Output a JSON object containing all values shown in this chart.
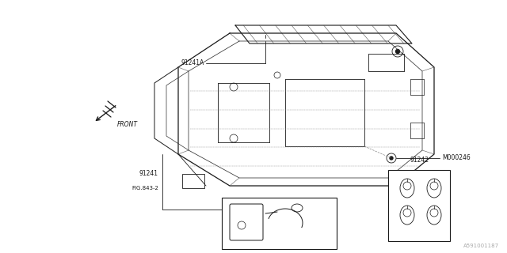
{
  "bg_color": "#ffffff",
  "lc": "#1a1a1a",
  "llc": "#666666",
  "tc": "#1a1a1a",
  "fig_width": 6.4,
  "fig_height": 3.2,
  "dpi": 100,
  "watermark": "A591001187",
  "label_91241A": [
    0.365,
    0.435
  ],
  "label_M000246": "M000246",
  "label_91241": "91241",
  "label_FIG": "FIG.843-2",
  "label_91242": "91242",
  "label_FRONT": "FRONT"
}
